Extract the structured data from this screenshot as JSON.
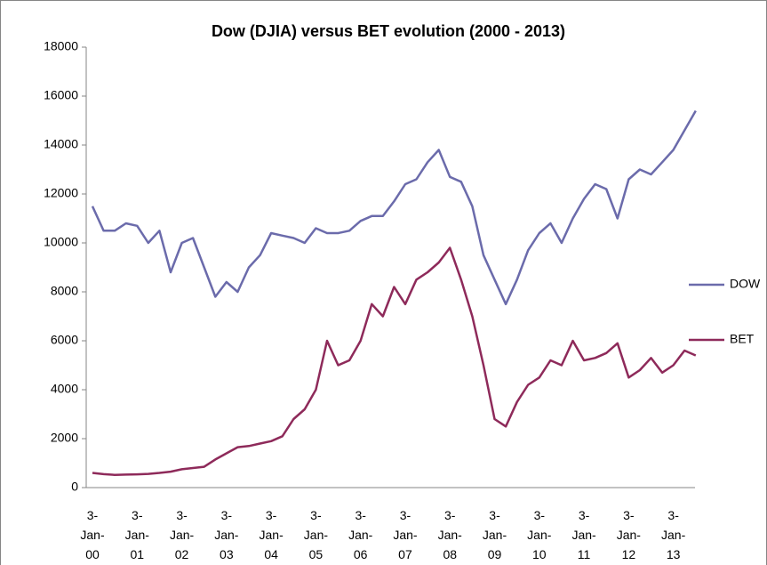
{
  "chart_data": {
    "type": "line",
    "title": "Dow (DJIA) versus BET evolution (2000 - 2013)",
    "categories": [
      "3-Jan-00",
      null,
      null,
      null,
      "3-Jan-01",
      null,
      null,
      null,
      "3-Jan-02",
      null,
      null,
      null,
      "3-Jan-03",
      null,
      null,
      null,
      "3-Jan-04",
      null,
      null,
      null,
      "3-Jan-05",
      null,
      null,
      null,
      "3-Jan-06",
      null,
      null,
      null,
      "3-Jan-07",
      null,
      null,
      null,
      "3-Jan-08",
      null,
      null,
      null,
      "3-Jan-09",
      null,
      null,
      null,
      "3-Jan-10",
      null,
      null,
      null,
      "3-Jan-11",
      null,
      null,
      null,
      "3-Jan-12",
      null,
      null,
      null,
      "3-Jan-13",
      null,
      null
    ],
    "series": [
      {
        "name": "DOW",
        "color": "#6b6bab",
        "values": [
          11500,
          10500,
          10500,
          10800,
          10700,
          10000,
          10500,
          8800,
          10000,
          10200,
          9000,
          7800,
          8400,
          8000,
          9000,
          9500,
          10400,
          10300,
          10200,
          10000,
          10600,
          10400,
          10400,
          10500,
          10900,
          11100,
          11100,
          11700,
          12400,
          12600,
          13300,
          13800,
          12700,
          12500,
          11500,
          9500,
          8500,
          7500,
          8500,
          9700,
          10400,
          10800,
          10000,
          11000,
          11800,
          12400,
          12200,
          11000,
          12600,
          13000,
          12800,
          13300,
          13800,
          14600,
          15400
        ]
      },
      {
        "name": "BET",
        "color": "#8e2a5a",
        "values": [
          600,
          550,
          520,
          530,
          540,
          560,
          600,
          650,
          750,
          800,
          850,
          1150,
          1400,
          1650,
          1700,
          1800,
          1900,
          2100,
          2800,
          3200,
          4000,
          6000,
          5000,
          5200,
          6000,
          7500,
          7000,
          8200,
          7500,
          8500,
          8800,
          9200,
          9800,
          8500,
          7000,
          5000,
          2800,
          2500,
          3500,
          4200,
          4500,
          5200,
          5000,
          6000,
          5200,
          5300,
          5500,
          5900,
          4500,
          4800,
          5300,
          4700,
          5000,
          5600,
          5400
        ]
      }
    ],
    "ylim": [
      0,
      18000
    ],
    "yticks": [
      0,
      2000,
      4000,
      6000,
      8000,
      10000,
      12000,
      14000,
      16000,
      18000
    ],
    "grid": false,
    "legend": "right"
  }
}
